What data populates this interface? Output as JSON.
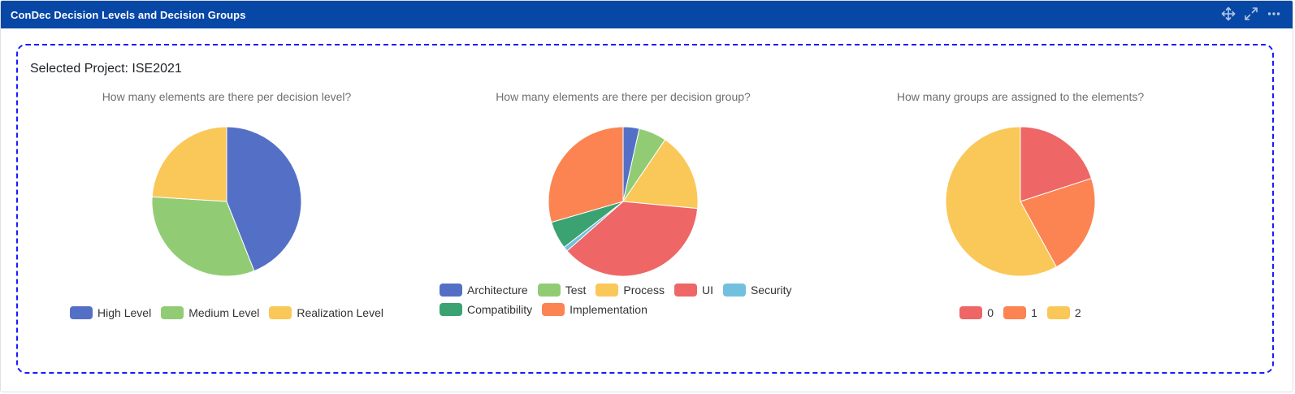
{
  "gadget": {
    "title": "ConDec Decision Levels and Decision Groups",
    "icons": [
      "move-icon",
      "expand-icon",
      "more-icon"
    ]
  },
  "project": {
    "label": "Selected Project: ISE2021"
  },
  "colors": {
    "header_bg": "#0747a6",
    "dashed_border": "#1a1aff"
  },
  "chart_data": [
    {
      "type": "pie",
      "title": "How many elements are there per decision level?",
      "legend_position": "bottom",
      "slices": [
        {
          "name": "High Level",
          "value": 44,
          "color": "#5470c6"
        },
        {
          "name": "Medium Level",
          "value": 32,
          "color": "#91cc75"
        },
        {
          "name": "Realization Level",
          "value": 24,
          "color": "#fac858"
        }
      ]
    },
    {
      "type": "pie",
      "title": "How many elements are there per decision group?",
      "legend_position": "bottom",
      "slices": [
        {
          "name": "Architecture",
          "value": 3.5,
          "color": "#5470c6"
        },
        {
          "name": "Test",
          "value": 6,
          "color": "#91cc75"
        },
        {
          "name": "Process",
          "value": 17,
          "color": "#fac858"
        },
        {
          "name": "UI",
          "value": 37,
          "color": "#ee6666"
        },
        {
          "name": "Security",
          "value": 1,
          "color": "#73c0de"
        },
        {
          "name": "Compatibility",
          "value": 6,
          "color": "#3ba272"
        },
        {
          "name": "Implementation",
          "value": 29.5,
          "color": "#fc8452"
        }
      ]
    },
    {
      "type": "pie",
      "title": "How many groups are assigned to the elements?",
      "legend_position": "bottom",
      "slices": [
        {
          "name": "0",
          "value": 20,
          "color": "#ee6666"
        },
        {
          "name": "1",
          "value": 22,
          "color": "#fc8452"
        },
        {
          "name": "2",
          "value": 58,
          "color": "#fac858"
        }
      ]
    }
  ]
}
